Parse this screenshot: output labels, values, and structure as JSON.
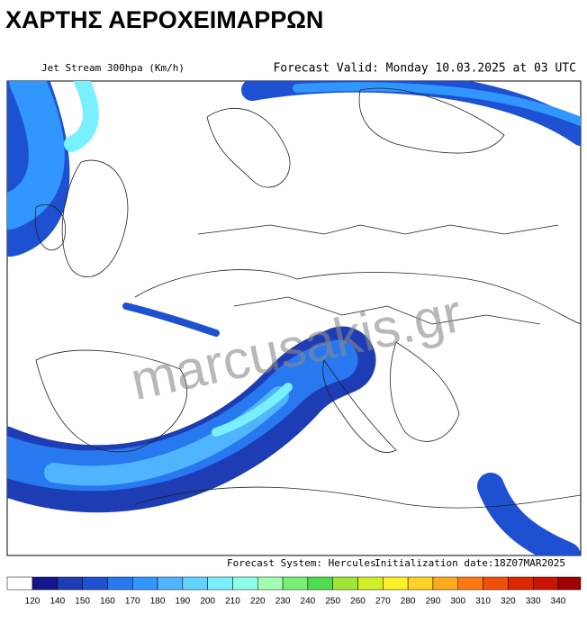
{
  "header": {
    "title": "ΧΑΡΤΗΣ ΑΕΡΟΧΕΙΜΑΡΡΩΝ",
    "subtitle": "Jet Stream 300hpa (Km/h)",
    "forecast_valid": "Forecast Valid:  Monday 10.03.2025 at 03 UTC"
  },
  "footer": {
    "system": "Forecast System: Hercules",
    "init": "Initialization date:18Z07MAR2025"
  },
  "watermark": "marcusakis.gr",
  "colorbar": {
    "labels": [
      120,
      140,
      150,
      160,
      170,
      180,
      190,
      200,
      210,
      220,
      230,
      240,
      250,
      260,
      270,
      280,
      290,
      300,
      310,
      320,
      330,
      340
    ],
    "colors": [
      "#ffffff",
      "#16168c",
      "#1e3cb4",
      "#1e50d2",
      "#2878f0",
      "#3296ff",
      "#50b4ff",
      "#64d2ff",
      "#78f0ff",
      "#8cffe6",
      "#a0ffb4",
      "#78f078",
      "#50dc50",
      "#a0e632",
      "#d2f028",
      "#fff028",
      "#ffd228",
      "#ffaa1e",
      "#ff7814",
      "#f0500a",
      "#dc2800",
      "#c81400",
      "#a00000"
    ]
  }
}
